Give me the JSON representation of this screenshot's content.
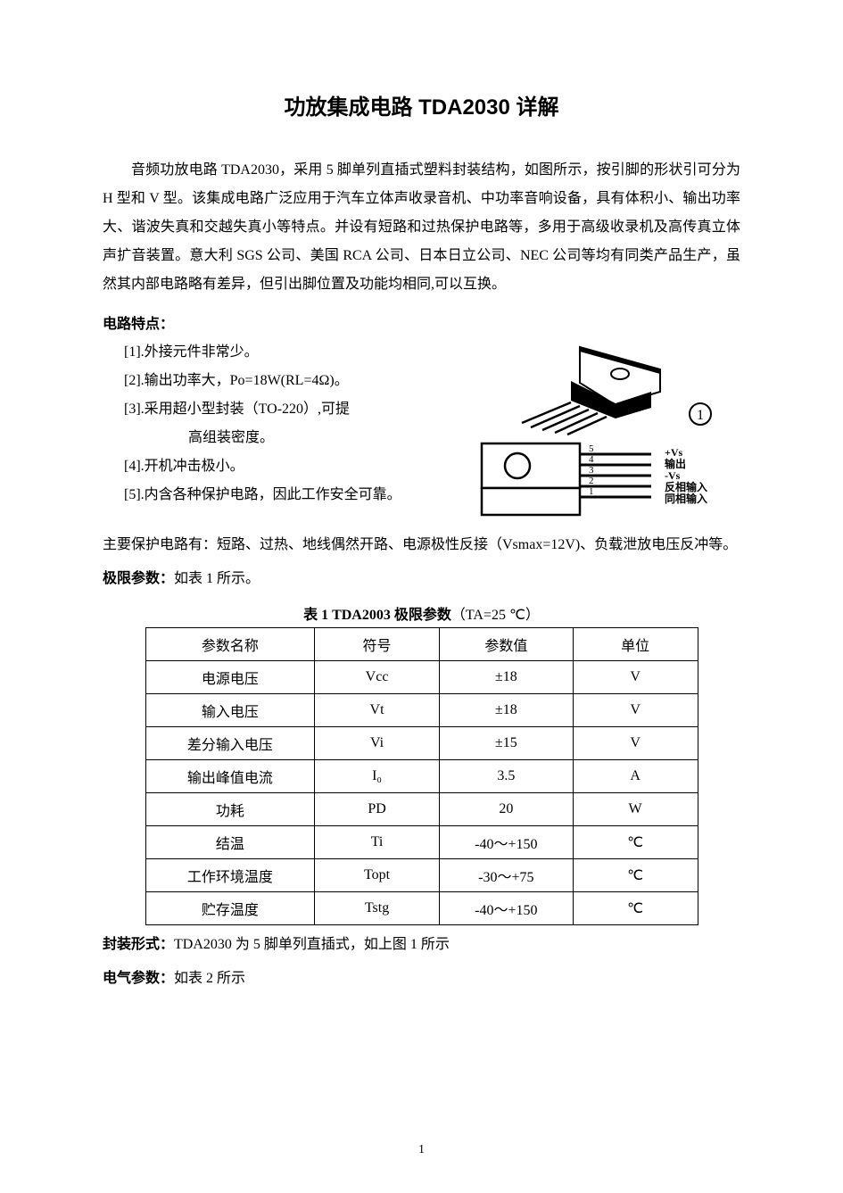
{
  "title": "功放集成电路 TDA2030 详解",
  "intro": "音频功放电路 TDA2030，采用 5 脚单列直插式塑料封装结构，如图所示，按引脚的形状引可分为 H 型和 V 型。该集成电路广泛应用于汽车立体声收录音机、中功率音响设备，具有体积小、输出功率大、谐波失真和交越失真小等特点。并设有短路和过热保护电路等，多用于高级收录机及高传真立体声扩音装置。意大利 SGS 公司、美国 RCA 公司、日本日立公司、NEC 公司等均有同类产品生产，虽然其内部电路略有差异，但引出脚位置及功能均相同,可以互换。",
  "features_heading": "电路特点：",
  "features": [
    {
      "idx": "[1].",
      "text": "外接元件非常少。"
    },
    {
      "idx": "[2].",
      "text": "输出功率大，Po=18W(RL=4Ω)。"
    },
    {
      "idx": "[3].",
      "text": "采用超小型封装（TO-220）,可提",
      "cont": "高组装密度。"
    },
    {
      "idx": "[4].",
      "text": "开机冲击极小。"
    },
    {
      "idx": "[5].",
      "text": "内含各种保护电路，因此工作安全可靠。"
    }
  ],
  "protect_line": "主要保护电路有：短路、过热、地线偶然开路、电源极性反接（Vsmax=12V)、负载泄放电压反冲等。",
  "pinout": {
    "pins": [
      "5",
      "4",
      "3",
      "2",
      "1"
    ],
    "labels": [
      "+Vs",
      "输出",
      "-Vs",
      "反相输入",
      "同相输入"
    ],
    "circled": "①"
  },
  "limit_heading": "极限参数：",
  "limit_tail": "如表 1 所示。",
  "table1_caption_bold": "表 1 TDA2003 极限参数",
  "table1_caption_tail": "（TA=25 ℃）",
  "table1": {
    "headers": [
      "参数名称",
      "符号",
      "参数值",
      "单位"
    ],
    "rows": [
      [
        "电源电压",
        "Vcc",
        "±18",
        "V"
      ],
      [
        "输入电压",
        "Vt",
        "±18",
        "V"
      ],
      [
        "差分输入电压",
        "Vi",
        "±15",
        "V"
      ],
      [
        "输出峰值电流",
        "I₀",
        "3.5",
        "A"
      ],
      [
        "功耗",
        "PD",
        "20",
        "W"
      ],
      [
        "结温",
        "Ti",
        "-40～+150",
        "℃"
      ],
      [
        "工作环境温度",
        "Topt",
        "-30～+75",
        "℃"
      ],
      [
        "贮存温度",
        "Tstg",
        "-40～+150",
        "℃"
      ]
    ],
    "col_widths": [
      "190px",
      "140px",
      "150px",
      "140px"
    ]
  },
  "pkg_heading": "封装形式：",
  "pkg_tail": "TDA2030 为 5 脚单列直插式，如上图 1 所示",
  "elec_heading": "电气参数：",
  "elec_tail": "如表 2 所示",
  "page_number": "1",
  "colors": {
    "text": "#000000",
    "background": "#ffffff",
    "border": "#000000"
  }
}
